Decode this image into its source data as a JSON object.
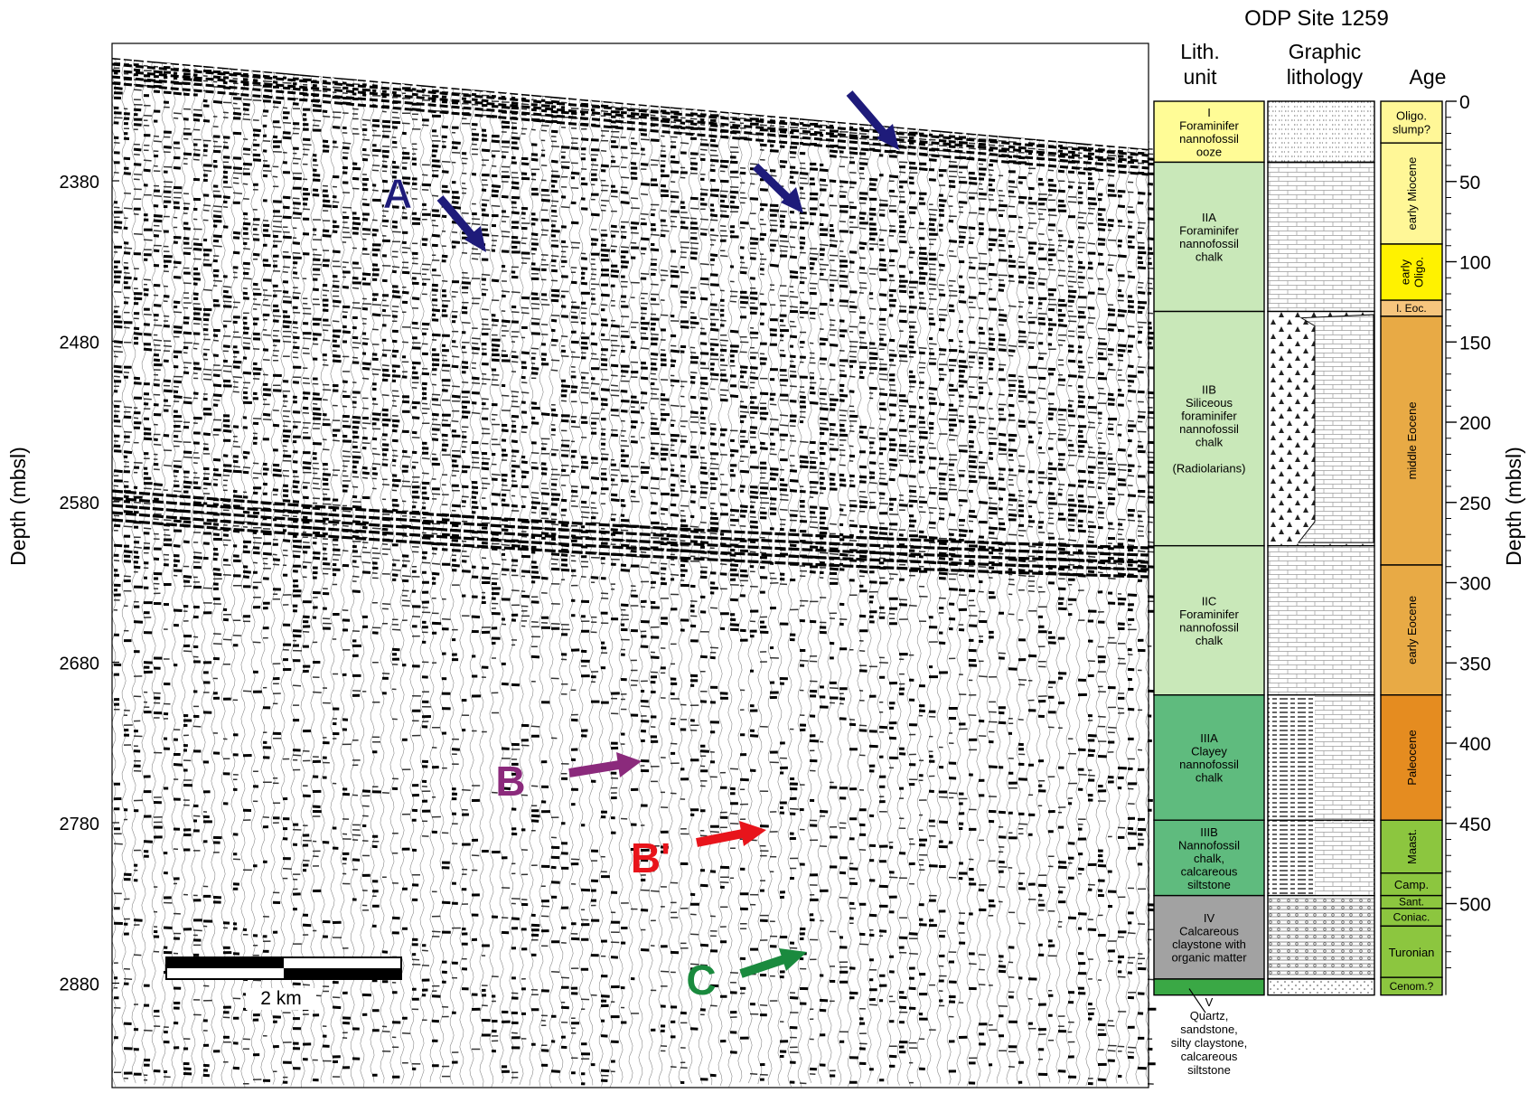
{
  "site_title": "ODP Site 1259",
  "seismic": {
    "ylabel": "Depth (mbsl)",
    "depth_ticks": [
      "2380",
      "2480",
      "2580",
      "2680",
      "2780",
      "2880"
    ],
    "scale_bar_label": "2 km",
    "markers": [
      {
        "label": "A",
        "color": "#1e1b7a"
      },
      {
        "label": "B",
        "color": "#8b2a7c"
      },
      {
        "label": "B'",
        "color": "#e8141b"
      },
      {
        "label": "C",
        "color": "#1a8a3e"
      }
    ]
  },
  "column_headers": {
    "lith_unit": [
      "Lith.",
      "unit"
    ],
    "graphic": [
      "Graphic",
      "lithology"
    ],
    "age": "Age"
  },
  "lith_units": [
    {
      "lines": [
        "I",
        "Foraminifer",
        "nannofossil",
        "ooze"
      ],
      "color": "#fffc96",
      "top_m": 0,
      "bottom_m": 38
    },
    {
      "lines": [
        "IIA",
        "Foraminifer",
        "nannofossil",
        "chalk"
      ],
      "color": "#c9e8b9",
      "top_m": 38,
      "bottom_m": 131
    },
    {
      "lines": [
        "IIB",
        "Siliceous",
        "foraminifer",
        "nannofossil",
        "chalk",
        "",
        "(Radiolarians)"
      ],
      "color": "#c9e8b9",
      "top_m": 131,
      "bottom_m": 277
    },
    {
      "lines": [
        "IIC",
        "Foraminifer",
        "nannofossil",
        "chalk"
      ],
      "color": "#c9e8b9",
      "top_m": 277,
      "bottom_m": 370
    },
    {
      "lines": [
        "IIIA",
        "Clayey",
        "nannofossil",
        "chalk"
      ],
      "color": "#5fbb7e",
      "top_m": 370,
      "bottom_m": 448
    },
    {
      "lines": [
        "IIIB",
        "Nannofossil",
        "chalk,",
        "calcareous",
        "siltstone"
      ],
      "color": "#5fbb7e",
      "top_m": 448,
      "bottom_m": 495
    },
    {
      "lines": [
        "IV",
        "Calcareous",
        "claystone with",
        "organic matter"
      ],
      "color": "#a2a2a2",
      "top_m": 495,
      "bottom_m": 547
    },
    {
      "lines": [],
      "color": "#3aa845",
      "top_m": 547,
      "bottom_m": 557
    }
  ],
  "unit_v_label": [
    "V",
    "Quartz,",
    "sandstone,",
    "silty claystone,",
    "calcareous",
    "siltstone"
  ],
  "ages": [
    {
      "lines": [
        "Oligo.",
        "slump?"
      ],
      "color": "#fff797",
      "top_m": 0,
      "bottom_m": 26,
      "vertical": false
    },
    {
      "lines": [
        "early Miocene"
      ],
      "color": "#fff797",
      "top_m": 26,
      "bottom_m": 89,
      "vertical": true
    },
    {
      "lines": [
        "early",
        "Oligo."
      ],
      "color": "#fff200",
      "top_m": 89,
      "bottom_m": 124,
      "vertical": true
    },
    {
      "lines": [
        "l. Eoc."
      ],
      "color": "#f6c57d",
      "top_m": 124,
      "bottom_m": 134,
      "vertical": false
    },
    {
      "lines": [
        "middle Eocene"
      ],
      "color": "#e8aa45",
      "top_m": 134,
      "bottom_m": 289,
      "vertical": true
    },
    {
      "lines": [
        "early Eocene"
      ],
      "color": "#e8aa45",
      "top_m": 289,
      "bottom_m": 370,
      "vertical": true
    },
    {
      "lines": [
        "Paleocene"
      ],
      "color": "#e58c20",
      "top_m": 370,
      "bottom_m": 448,
      "vertical": true
    },
    {
      "lines": [
        "Maast."
      ],
      "color": "#8cc63f",
      "top_m": 448,
      "bottom_m": 481,
      "vertical": true
    },
    {
      "lines": [
        "Camp."
      ],
      "color": "#8cc63f",
      "top_m": 481,
      "bottom_m": 495,
      "vertical": false
    },
    {
      "lines": [
        "Sant."
      ],
      "color": "#8cc63f",
      "top_m": 495,
      "bottom_m": 503,
      "vertical": false
    },
    {
      "lines": [
        "Coniac."
      ],
      "color": "#8cc63f",
      "top_m": 503,
      "bottom_m": 514,
      "vertical": false
    },
    {
      "lines": [
        "Turonian"
      ],
      "color": "#8cc63f",
      "top_m": 514,
      "bottom_m": 546,
      "vertical": false
    },
    {
      "lines": [
        "Cenom.?"
      ],
      "color": "#8cc63f",
      "top_m": 546,
      "bottom_m": 557,
      "vertical": false
    }
  ],
  "right_axis": {
    "label": "Depth (mbsl)",
    "ticks": [
      0,
      50,
      100,
      150,
      200,
      250,
      300,
      350,
      400,
      450,
      500
    ]
  }
}
